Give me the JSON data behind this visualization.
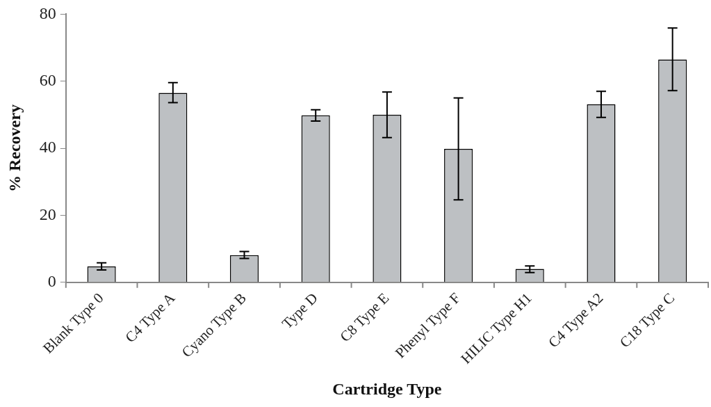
{
  "chart_data": {
    "type": "bar",
    "xlabel": "Cartridge Type",
    "ylabel": "% Recovery",
    "categories": [
      "Blank Type 0",
      "C4 Type A",
      "Cyano Type B",
      "Type D",
      "C8 Type E",
      "Phenyl Type F",
      "HILIC Type H1",
      "C4 Type A2",
      "C18 Type C"
    ],
    "values": [
      4.7,
      56.5,
      8.1,
      49.8,
      50.0,
      39.8,
      4.0,
      53.1,
      66.5
    ],
    "errors": [
      [
        3.7,
        5.8
      ],
      [
        53.6,
        59.6
      ],
      [
        7.1,
        9.2
      ],
      [
        48.1,
        51.5
      ],
      [
        43.2,
        56.8
      ],
      [
        24.6,
        55.0
      ],
      [
        2.9,
        4.9
      ],
      [
        49.2,
        57.0
      ],
      [
        57.2,
        75.9
      ]
    ],
    "color": "#bdc0c3",
    "ylim": [
      0,
      80
    ],
    "yticks": [
      0,
      20,
      40,
      60,
      80
    ]
  }
}
